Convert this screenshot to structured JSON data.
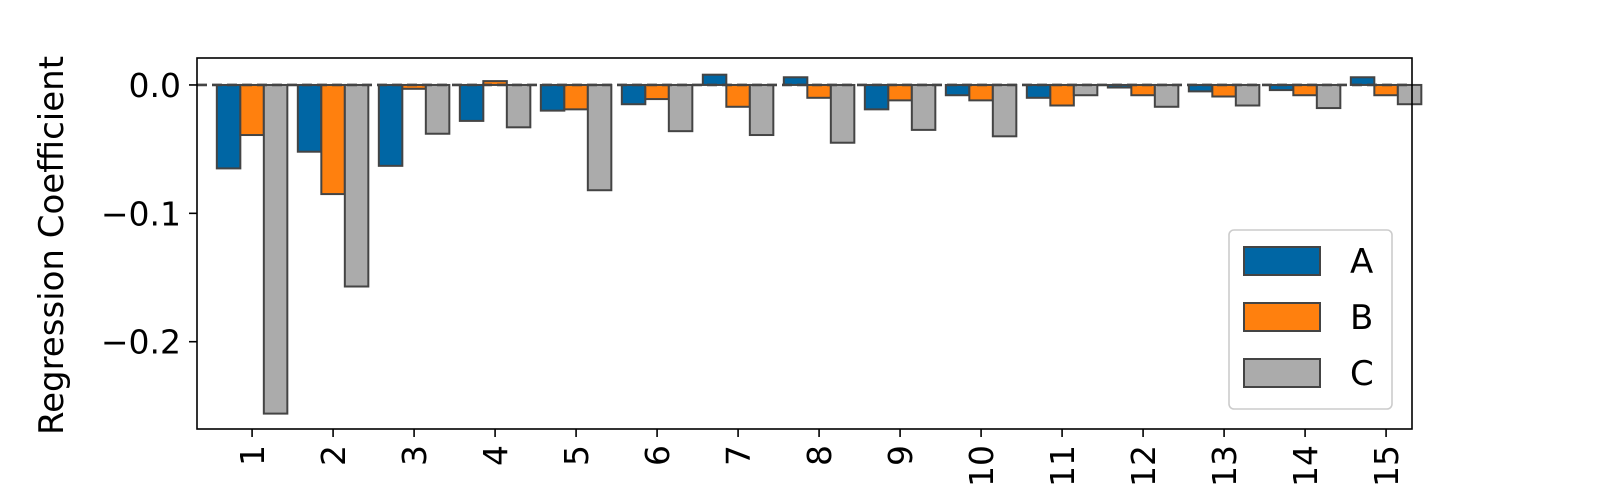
{
  "chart_data": {
    "type": "bar",
    "title": "",
    "xlabel": "",
    "ylabel": "Regression Coefficient",
    "categories": [
      "1",
      "2",
      "3",
      "4",
      "5",
      "6",
      "7",
      "8",
      "9",
      "10",
      "11",
      "12",
      "13",
      "14",
      "15"
    ],
    "series": [
      {
        "name": "A",
        "color": "#0066a4",
        "values": [
          -0.065,
          -0.052,
          -0.063,
          -0.028,
          -0.02,
          -0.015,
          0.008,
          0.006,
          -0.019,
          -0.008,
          -0.01,
          -0.002,
          -0.005,
          -0.004,
          0.006
        ]
      },
      {
        "name": "B",
        "color": "#ff800e",
        "values": [
          -0.039,
          -0.085,
          -0.003,
          0.003,
          -0.019,
          -0.011,
          -0.017,
          -0.01,
          -0.012,
          -0.012,
          -0.016,
          -0.008,
          -0.009,
          -0.008,
          -0.008
        ]
      },
      {
        "name": "C",
        "color": "#ababab",
        "values": [
          -0.256,
          -0.157,
          -0.038,
          -0.033,
          -0.082,
          -0.036,
          -0.039,
          -0.045,
          -0.035,
          -0.04,
          -0.008,
          -0.017,
          -0.016,
          -0.018,
          -0.015
        ]
      }
    ],
    "yticks": [
      0.0,
      -0.1,
      -0.2
    ],
    "ytick_labels": [
      "0.0",
      "−0.1",
      "−0.2"
    ],
    "ylim": [
      -0.268,
      0.021
    ],
    "zero_line": true,
    "grid": false,
    "legend_position": "lower right",
    "bar_edge_color": "#444444",
    "zero_line_color": "#444444"
  }
}
